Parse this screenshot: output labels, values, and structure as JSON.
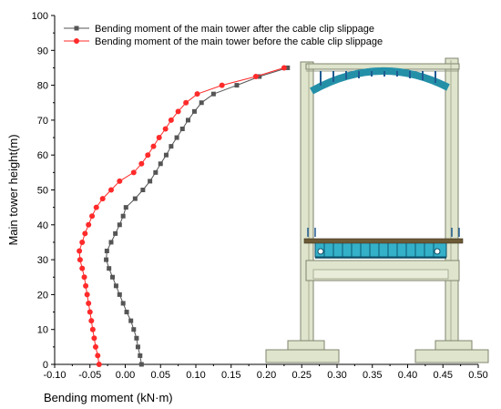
{
  "chart_data": {
    "type": "line",
    "title": "",
    "xlabel": "Bending moment (kN·m)",
    "ylabel": "Main tower height(m)",
    "xlim": [
      -0.1,
      0.5
    ],
    "ylim": [
      0,
      100
    ],
    "xticks": [
      "-0.10",
      "-0.05",
      "0.00",
      "0.05",
      "0.10",
      "0.15",
      "0.20",
      "0.25",
      "0.30",
      "0.35",
      "0.40",
      "0.45",
      "0.50"
    ],
    "yticks": [
      "0",
      "10",
      "20",
      "30",
      "40",
      "50",
      "60",
      "70",
      "80",
      "90",
      "100"
    ],
    "grid": false,
    "legend_position": "top-left",
    "series": [
      {
        "name": "Bending moment of the main tower after the cable clip slippage",
        "color": "#555555",
        "marker": "square",
        "points": [
          [
            0.023,
            0
          ],
          [
            0.021,
            2.5
          ],
          [
            0.018,
            5
          ],
          [
            0.016,
            7.5
          ],
          [
            0.012,
            10
          ],
          [
            0.008,
            12.5
          ],
          [
            0.002,
            15
          ],
          [
            -0.003,
            17.5
          ],
          [
            -0.008,
            20
          ],
          [
            -0.013,
            22.5
          ],
          [
            -0.018,
            25
          ],
          [
            -0.023,
            27.5
          ],
          [
            -0.027,
            30
          ],
          [
            -0.026,
            32.5
          ],
          [
            -0.02,
            35
          ],
          [
            -0.014,
            37.5
          ],
          [
            -0.008,
            40
          ],
          [
            -0.003,
            42.5
          ],
          [
            0.001,
            45
          ],
          [
            0.014,
            47.5
          ],
          [
            0.025,
            50
          ],
          [
            0.035,
            52.5
          ],
          [
            0.043,
            55
          ],
          [
            0.05,
            57.5
          ],
          [
            0.058,
            60
          ],
          [
            0.065,
            62.5
          ],
          [
            0.073,
            65
          ],
          [
            0.081,
            67.5
          ],
          [
            0.089,
            70
          ],
          [
            0.098,
            72.5
          ],
          [
            0.108,
            75
          ],
          [
            0.125,
            77.5
          ],
          [
            0.158,
            80
          ],
          [
            0.19,
            82.5
          ],
          [
            0.23,
            85
          ]
        ]
      },
      {
        "name": "Bending moment of the main tower before the cable clip slippage",
        "color": "#ff2a2a",
        "marker": "circle",
        "points": [
          [
            -0.037,
            0
          ],
          [
            -0.039,
            2.5
          ],
          [
            -0.042,
            5
          ],
          [
            -0.044,
            7.5
          ],
          [
            -0.046,
            10
          ],
          [
            -0.048,
            12.5
          ],
          [
            -0.05,
            15
          ],
          [
            -0.052,
            17.5
          ],
          [
            -0.054,
            20
          ],
          [
            -0.056,
            22.5
          ],
          [
            -0.058,
            25
          ],
          [
            -0.061,
            27.5
          ],
          [
            -0.064,
            30
          ],
          [
            -0.065,
            32.5
          ],
          [
            -0.061,
            35
          ],
          [
            -0.057,
            37.5
          ],
          [
            -0.052,
            40
          ],
          [
            -0.047,
            42.5
          ],
          [
            -0.041,
            45
          ],
          [
            -0.032,
            47.5
          ],
          [
            -0.02,
            50
          ],
          [
            -0.008,
            52.5
          ],
          [
            0.012,
            55
          ],
          [
            0.023,
            57.5
          ],
          [
            0.032,
            60
          ],
          [
            0.04,
            62.5
          ],
          [
            0.048,
            65
          ],
          [
            0.057,
            67.5
          ],
          [
            0.065,
            70
          ],
          [
            0.075,
            72.5
          ],
          [
            0.086,
            75
          ],
          [
            0.102,
            77.5
          ],
          [
            0.137,
            80
          ],
          [
            0.185,
            82.5
          ],
          [
            0.225,
            85
          ]
        ]
      }
    ]
  }
}
